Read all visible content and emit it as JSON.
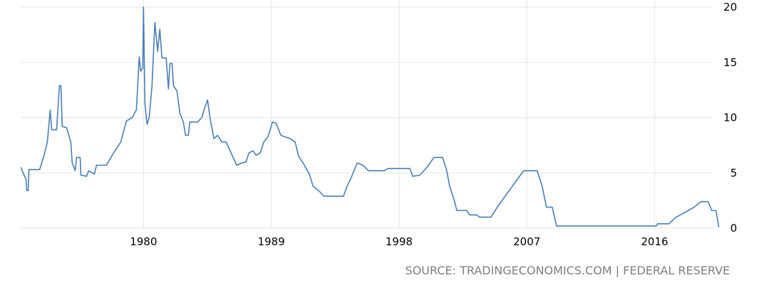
{
  "chart_data": {
    "type": "line",
    "x": [
      1971.37,
      1971.52,
      1971.73,
      1971.78,
      1971.88,
      1971.93,
      1972.68,
      1972.98,
      1973.23,
      1973.43,
      1973.53,
      1973.88,
      1974.08,
      1974.18,
      1974.28,
      1974.58,
      1974.88,
      1974.98,
      1975.19,
      1975.29,
      1975.54,
      1975.59,
      1975.99,
      1976.14,
      1976.54,
      1976.69,
      1977.39,
      1977.89,
      1978.4,
      1978.8,
      1979.2,
      1979.5,
      1979.7,
      1979.8,
      1979.95,
      1980.0,
      1980.1,
      1980.25,
      1980.4,
      1980.6,
      1980.8,
      1981.0,
      1981.15,
      1981.3,
      1981.6,
      1981.76,
      1981.86,
      1982.01,
      1982.11,
      1982.36,
      1982.56,
      1982.81,
      1982.96,
      1983.16,
      1983.26,
      1983.81,
      1984.11,
      1984.26,
      1984.51,
      1984.71,
      1984.96,
      1985.22,
      1985.52,
      1985.82,
      1986.17,
      1986.57,
      1986.92,
      1987.22,
      1987.42,
      1987.72,
      1987.92,
      1988.22,
      1988.47,
      1988.78,
      1989.08,
      1989.33,
      1989.68,
      1990.33,
      1990.68,
      1990.93,
      1991.33,
      1991.68,
      1991.94,
      1992.34,
      1992.69,
      1994.09,
      1994.34,
      1994.64,
      1995.05,
      1995.45,
      1995.85,
      1996.95,
      1997.25,
      1998.76,
      1998.96,
      1999.46,
      1999.96,
      2000.46,
      2001.06,
      2001.36,
      2001.56,
      2001.87,
      2002.07,
      2002.77,
      2002.97,
      2003.47,
      2003.67,
      2004.47,
      2004.97,
      2005.98,
      2006.78,
      2007.73,
      2008.08,
      2008.38,
      2008.79,
      2009.09,
      2016.11,
      2016.21,
      2017.01,
      2017.51,
      2018.11,
      2018.77,
      2019.27,
      2019.77,
      2020.02,
      2020.32,
      2020.52
    ],
    "values": [
      5.5,
      5.0,
      4.4,
      3.4,
      3.4,
      5.3,
      5.3,
      6.5,
      7.8,
      10.7,
      8.9,
      8.9,
      12.9,
      12.9,
      9.2,
      9.1,
      7.8,
      5.9,
      5.2,
      6.4,
      6.4,
      4.8,
      4.7,
      5.2,
      4.9,
      5.7,
      5.7,
      6.8,
      7.8,
      9.7,
      10.0,
      10.7,
      15.5,
      14.2,
      14.5,
      20.0,
      11.3,
      9.4,
      10.0,
      12.9,
      18.6,
      16.0,
      18.0,
      15.4,
      15.4,
      12.6,
      14.9,
      14.9,
      12.9,
      12.4,
      10.4,
      9.6,
      8.4,
      8.4,
      9.6,
      9.6,
      10.0,
      10.7,
      11.6,
      9.8,
      8.1,
      8.4,
      7.8,
      7.8,
      6.8,
      5.7,
      5.9,
      6.0,
      6.8,
      7.0,
      6.6,
      6.8,
      7.8,
      8.3,
      9.6,
      9.5,
      8.4,
      8.1,
      7.8,
      6.5,
      5.7,
      4.9,
      3.8,
      3.4,
      2.9,
      2.9,
      3.8,
      4.6,
      5.9,
      5.7,
      5.2,
      5.2,
      5.4,
      5.4,
      4.7,
      4.8,
      5.5,
      6.4,
      6.4,
      5.2,
      3.8,
      2.6,
      1.6,
      1.6,
      1.2,
      1.2,
      1.0,
      1.0,
      2.0,
      3.8,
      5.2,
      5.2,
      3.8,
      1.9,
      1.9,
      0.2,
      0.2,
      0.4,
      0.4,
      1.0,
      1.4,
      1.9,
      2.4,
      2.4,
      1.6,
      1.6,
      0.1
    ],
    "color": "#4a7fb5",
    "xlim": [
      1971.4,
      2020.6
    ],
    "xticks": [
      1980,
      1989,
      1998,
      2007,
      2016
    ],
    "ylim": [
      0,
      20
    ],
    "yticks": [
      0,
      5,
      10,
      15,
      20
    ],
    "grid": true,
    "source": "SOURCE: TRADINGECONOMICS.COM | FEDERAL RESERVE"
  }
}
